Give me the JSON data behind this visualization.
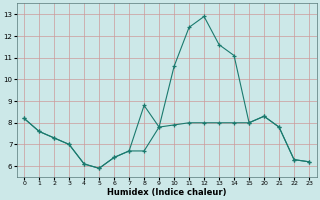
{
  "xlabel": "Humidex (Indice chaleur)",
  "bg_color": "#cce8e8",
  "line_color": "#1a7a6e",
  "grid_color": "#cc9999",
  "xlabels": [
    "0",
    "1",
    "2",
    "3",
    "4",
    "5",
    "6",
    "7",
    "8",
    "9",
    "10",
    "11",
    "12",
    "13",
    "14",
    "15",
    "20",
    "21",
    "22",
    "23"
  ],
  "series1_xi": [
    0,
    1,
    2,
    3,
    4,
    5,
    6,
    7,
    8,
    9,
    10,
    11,
    12,
    13,
    14,
    15,
    16,
    17,
    18,
    19
  ],
  "series1_y": [
    8.2,
    7.6,
    7.3,
    7.0,
    6.1,
    5.9,
    6.4,
    6.7,
    6.7,
    7.8,
    7.9,
    8.0,
    8.0,
    8.0,
    8.0,
    8.0,
    8.3,
    7.8,
    6.3,
    6.2
  ],
  "series2_xi": [
    0,
    1,
    2,
    3,
    4,
    5,
    6,
    7,
    8,
    9,
    10,
    11,
    12,
    13,
    14,
    15,
    16,
    17,
    18,
    19
  ],
  "series2_y": [
    8.2,
    7.6,
    7.3,
    7.0,
    6.1,
    5.9,
    6.4,
    6.7,
    8.8,
    7.8,
    10.6,
    12.4,
    12.9,
    11.6,
    11.1,
    8.0,
    8.3,
    7.8,
    6.3,
    6.2
  ],
  "xlim": [
    -0.5,
    19.5
  ],
  "ylim": [
    5.5,
    13.5
  ],
  "yticks": [
    6,
    7,
    8,
    9,
    10,
    11,
    12,
    13
  ]
}
